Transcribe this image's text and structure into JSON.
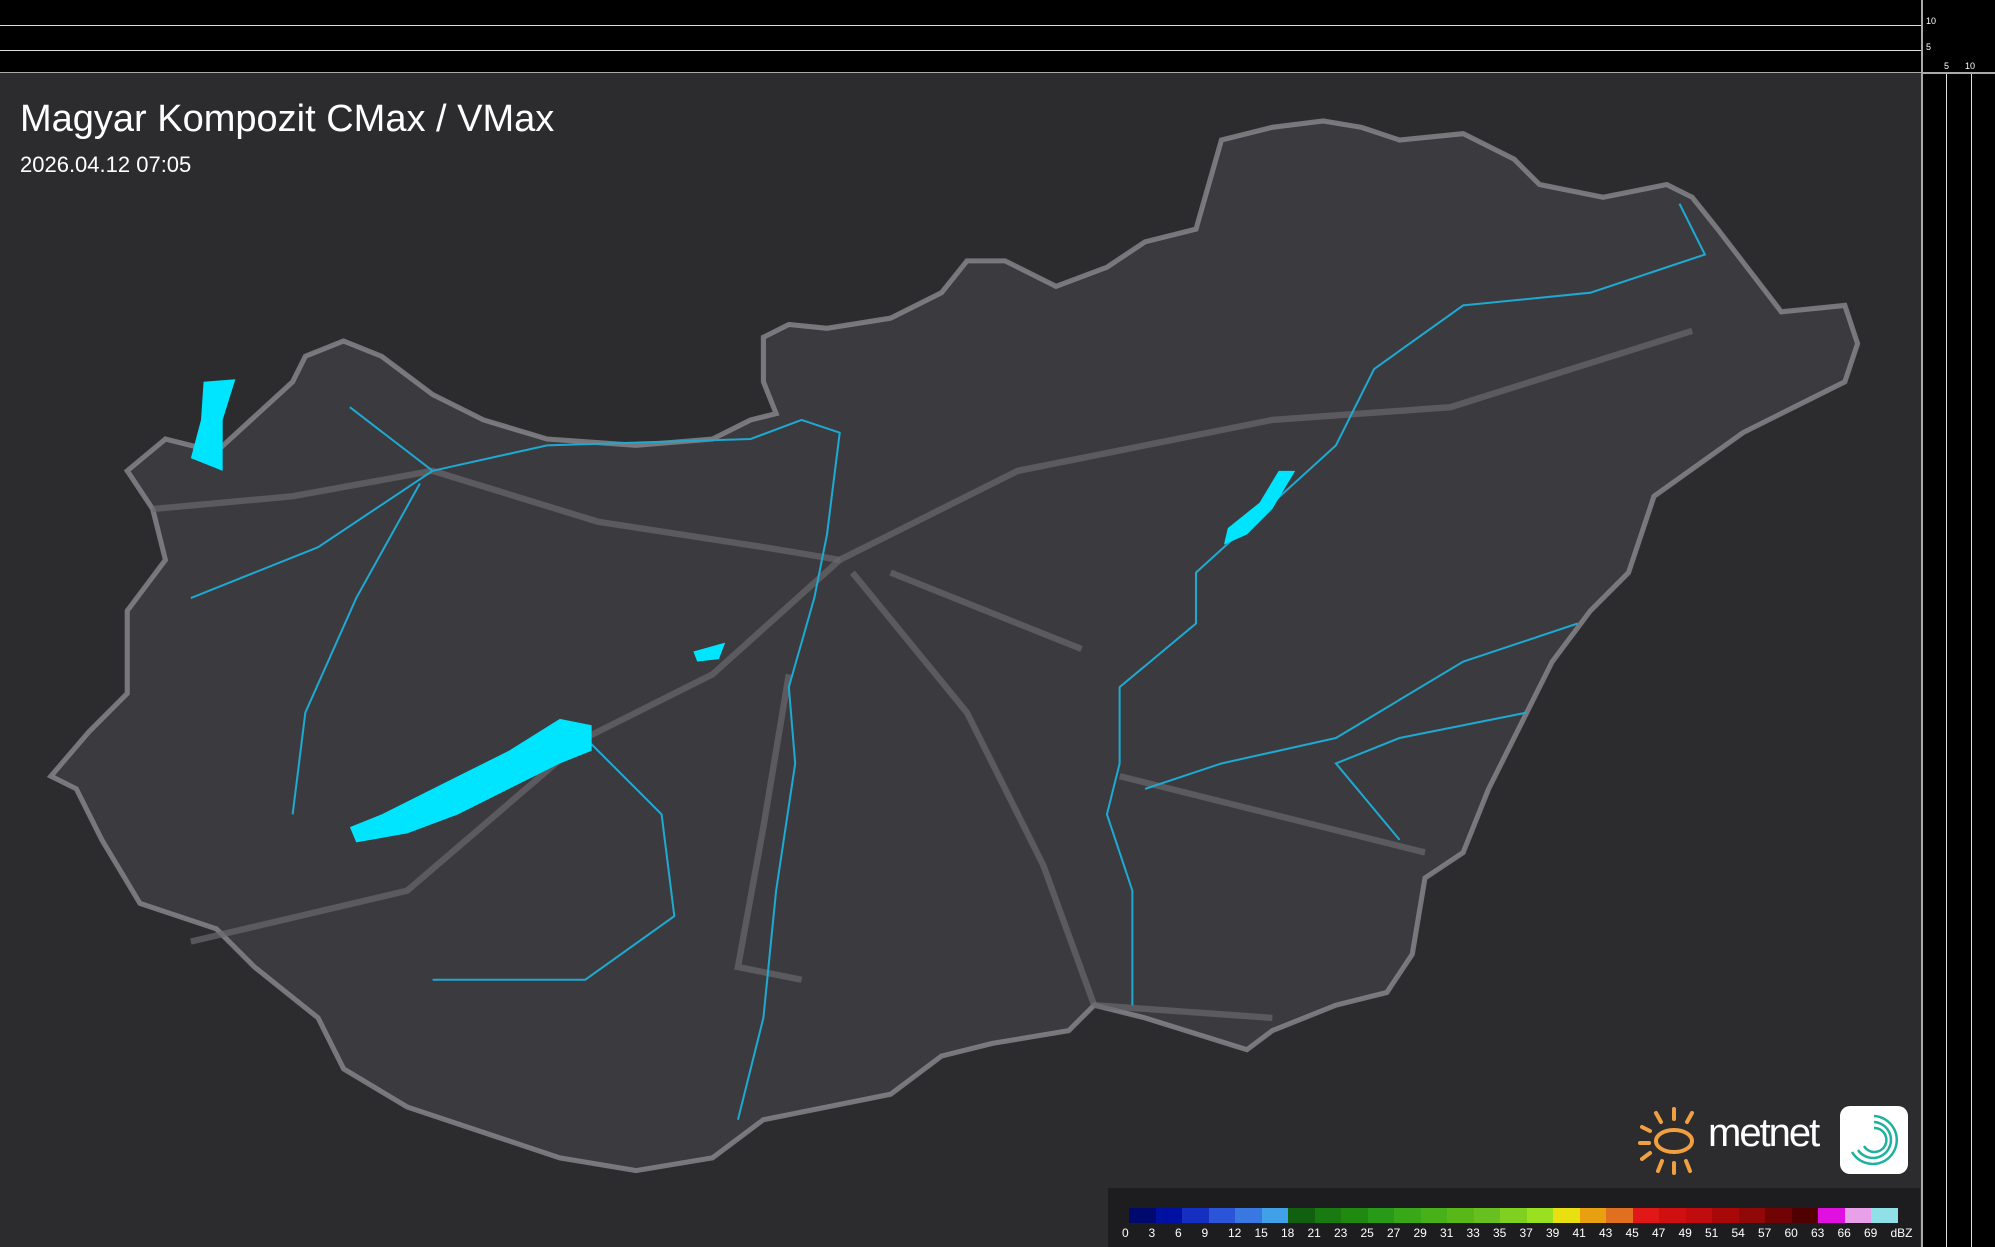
{
  "header": {
    "title": "Magyar Kompozit CMax / VMax",
    "timestamp": "2026.04.12 07:05"
  },
  "axes": {
    "right_ticks": [
      "10",
      "5"
    ],
    "bottom_ticks": [
      "5",
      "10"
    ]
  },
  "logo": {
    "brand": "metnet",
    "icon": "spiral-app-icon"
  },
  "legend": {
    "unit": "dBZ",
    "labels": [
      "0",
      "3",
      "6",
      "9",
      "12",
      "15",
      "18",
      "21",
      "23",
      "25",
      "27",
      "29",
      "31",
      "33",
      "35",
      "37",
      "39",
      "41",
      "43",
      "45",
      "47",
      "49",
      "51",
      "54",
      "57",
      "60",
      "63",
      "66",
      "69"
    ],
    "colors": [
      "#000a6e",
      "#0010a0",
      "#1530c0",
      "#2a55d8",
      "#3878e0",
      "#40a0e8",
      "#106010",
      "#187a10",
      "#208a10",
      "#289a18",
      "#38a818",
      "#48b018",
      "#58b818",
      "#68c020",
      "#80d020",
      "#98e020",
      "#e8e010",
      "#e8a010",
      "#e07020",
      "#e01818",
      "#d01010",
      "#c00c0c",
      "#a80808",
      "#900808",
      "#700404",
      "#500000",
      "#e010e0",
      "#e8a0e8",
      "#90e0e8"
    ]
  },
  "map_colors": {
    "lakes": "#00e5ff",
    "rivers": "#1fa8d0",
    "border": "#8a8a8e",
    "roads": "#6a6a6e"
  }
}
